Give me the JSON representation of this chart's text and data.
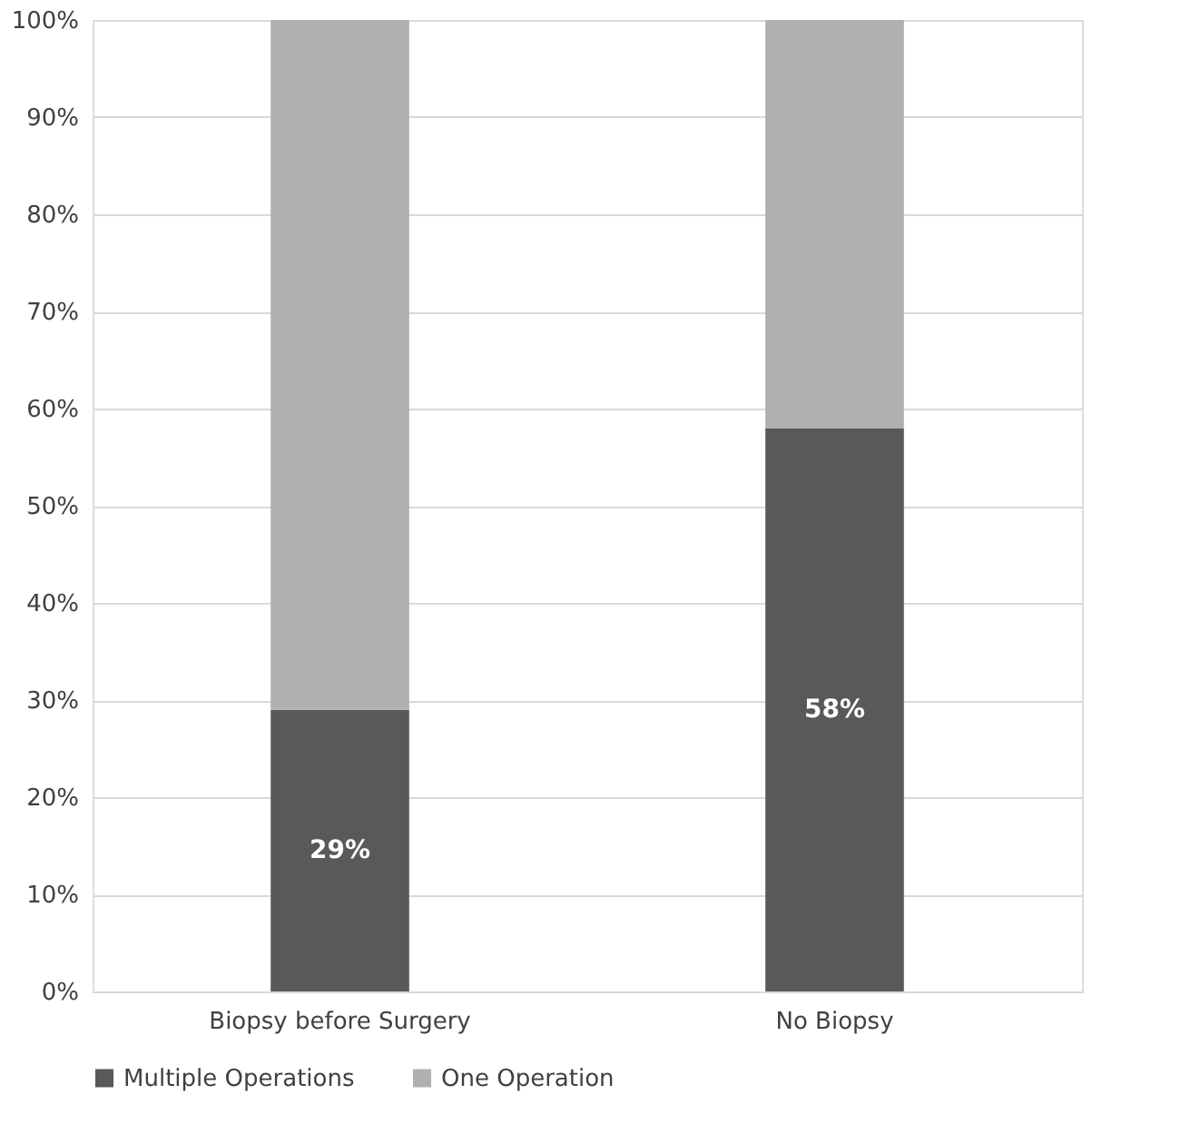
{
  "chart_data": {
    "type": "bar",
    "stacked": true,
    "categories": [
      "Biopsy before Surgery",
      "No Biopsy"
    ],
    "series": [
      {
        "name": "Multiple Operations",
        "color": "#595959",
        "values": [
          29,
          58
        ],
        "value_labels": [
          "29%",
          "58%"
        ]
      },
      {
        "name": "One Operation",
        "color": "#b0b0b0",
        "values": [
          71,
          42
        ]
      }
    ],
    "ylim": [
      0,
      100
    ],
    "yticks": [
      {
        "value": 0,
        "label": "0%"
      },
      {
        "value": 10,
        "label": "10%"
      },
      {
        "value": 20,
        "label": "20%"
      },
      {
        "value": 30,
        "label": "30%"
      },
      {
        "value": 40,
        "label": "40%"
      },
      {
        "value": 50,
        "label": "50%"
      },
      {
        "value": 60,
        "label": "60%"
      },
      {
        "value": 70,
        "label": "70%"
      },
      {
        "value": 80,
        "label": "80%"
      },
      {
        "value": 90,
        "label": "90%"
      },
      {
        "value": 100,
        "label": "100%"
      }
    ],
    "grid": "y",
    "legend": "bottom"
  }
}
